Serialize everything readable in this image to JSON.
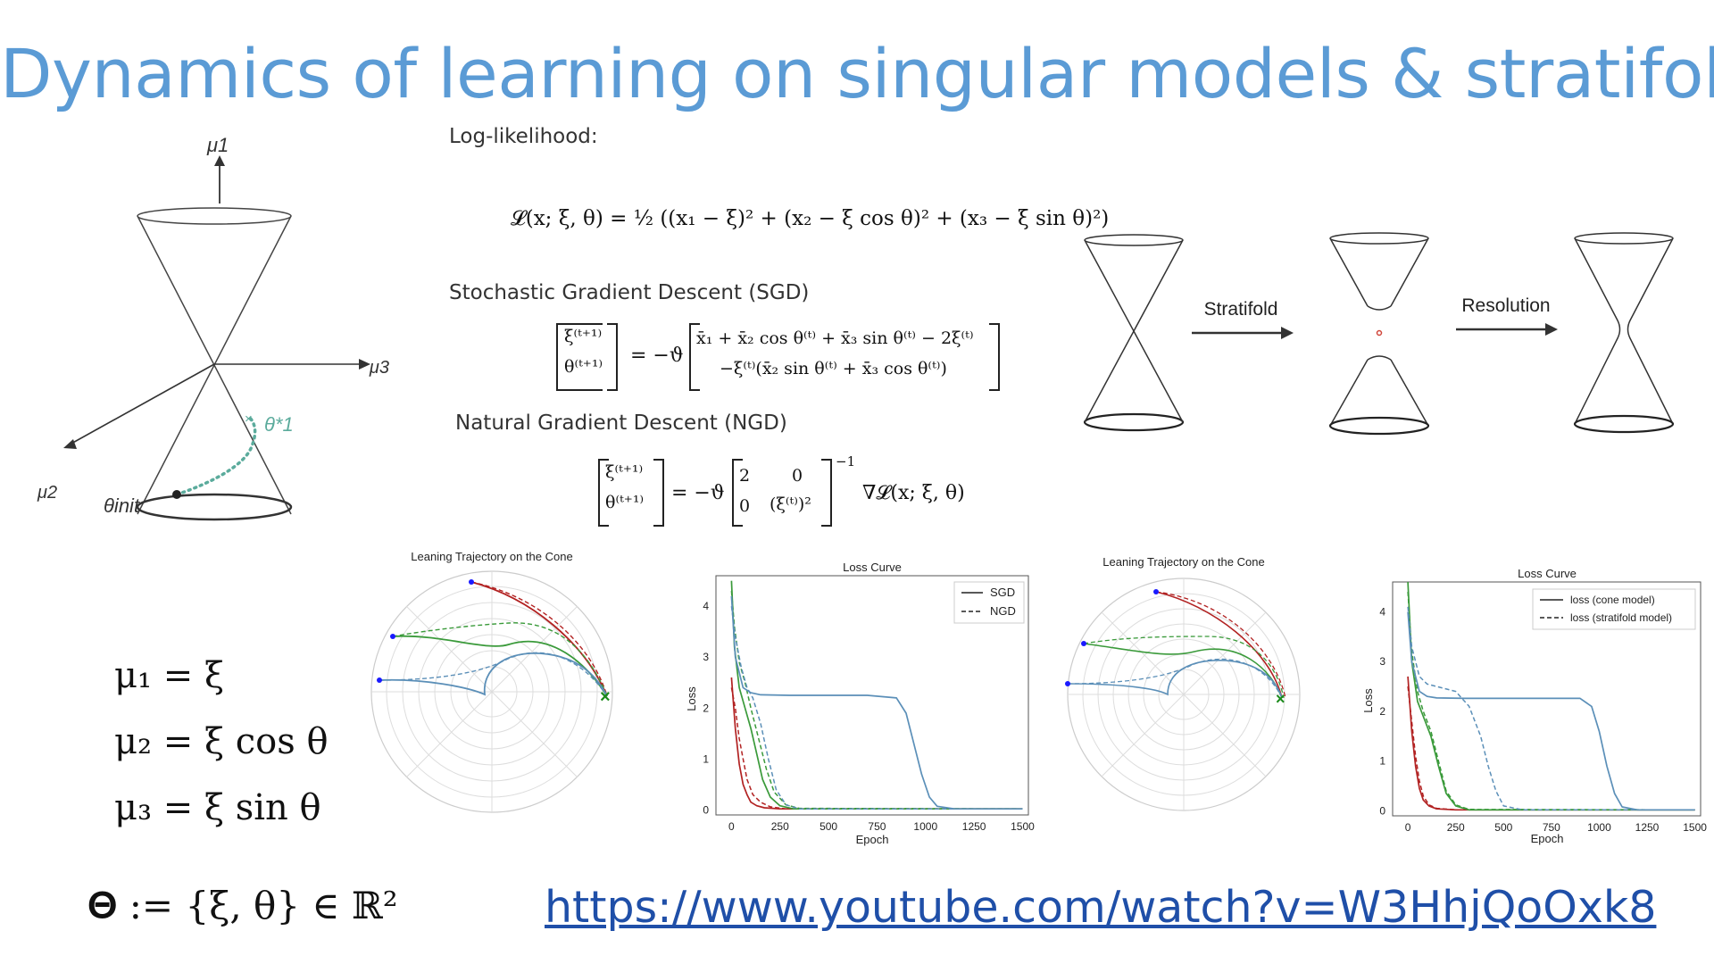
{
  "slide": {
    "title": "Dynamics of learning on singular models & stratifolds",
    "link": "https://www.youtube.com/watch?v=W3HhjQoOxk8"
  },
  "cone_diagram": {
    "axis_mu1": "μ1",
    "axis_mu2": "μ2",
    "axis_mu3": "μ3",
    "theta_star": "θ*1",
    "theta_init": "θinit"
  },
  "equations": {
    "loglik_label": "Log-likelihood:",
    "loglik": "𝓛(x; ξ, θ) = ½ ((x₁ − ξ)² + (x₂ − ξ cos θ)² + (x₃ − ξ sin θ)²)",
    "sgd_label": "Stochastic Gradient Descent (SGD)",
    "sgd_lhs_top": "ξ⁽ᵗ⁺¹⁾",
    "sgd_lhs_bottom": "θ⁽ᵗ⁺¹⁾",
    "sgd_factor": "= −ϑ",
    "sgd_rhs_top": "x̄₁ + x̄₂ cos θ⁽ᵗ⁾ + x̄₃ sin θ⁽ᵗ⁾ − 2ξ⁽ᵗ⁾",
    "sgd_rhs_bottom": "−ξ⁽ᵗ⁾(x̄₂ sin θ⁽ᵗ⁾ + x̄₃ cos θ⁽ᵗ⁾)",
    "ngd_label": "Natural Gradient Descent (NGD)",
    "ngd_lhs_top": "ξ⁽ᵗ⁺¹⁾",
    "ngd_lhs_bottom": "θ⁽ᵗ⁺¹⁾",
    "ngd_factor": "= −ϑ",
    "ngd_m11": "2",
    "ngd_m12": "0",
    "ngd_m21": "0",
    "ngd_m22": "(ξ⁽ᵗ⁾)²",
    "ngd_exp": "−1",
    "ngd_grad": "∇𝓛(x; ξ, θ)"
  },
  "stratifold_diagram": {
    "arrow1_label": "Stratifold",
    "arrow2_label": "Resolution"
  },
  "parametrization": {
    "mu1": "μ₁ = ξ",
    "mu2": "μ₂ = ξ cos θ",
    "mu3": "μ₃ = ξ sin θ",
    "theta_set": "𝚯 := {ξ, θ} ∈ ℝ²"
  },
  "charts": {
    "polar_left_title": "Leaning Trajectory on the Cone",
    "polar_right_title": "Leaning Trajectory on the Cone",
    "loss_left_title": "Loss Curve",
    "loss_right_title": "Loss Curve"
  },
  "chart_data": [
    {
      "type": "line",
      "title": "Loss Curve",
      "xlabel": "Epoch",
      "ylabel": "Loss",
      "xlim": [
        -80,
        1530
      ],
      "ylim": [
        -0.1,
        4.6
      ],
      "xticks": [
        0,
        250,
        500,
        750,
        1000,
        1250,
        1500
      ],
      "yticks": [
        0,
        1,
        2,
        3,
        4
      ],
      "legend": {
        "position": "top-right",
        "entries": [
          {
            "label": "SGD",
            "style": "solid"
          },
          {
            "label": "NGD",
            "style": "dashed"
          }
        ]
      },
      "series": [
        {
          "color": "#b22222",
          "style": "solid",
          "x": [
            0,
            20,
            40,
            60,
            80,
            100,
            130,
            170,
            250,
            1500
          ],
          "y": [
            2.6,
            1.6,
            0.9,
            0.5,
            0.3,
            0.15,
            0.08,
            0.04,
            0.02,
            0.02
          ]
        },
        {
          "color": "#b22222",
          "style": "dashed",
          "x": [
            0,
            20,
            40,
            60,
            80,
            110,
            150,
            200,
            280,
            1500
          ],
          "y": [
            2.4,
            2.0,
            1.4,
            1.0,
            0.6,
            0.3,
            0.15,
            0.06,
            0.02,
            0.02
          ]
        },
        {
          "color": "#3a9a3a",
          "style": "solid",
          "x": [
            0,
            15,
            40,
            70,
            100,
            130,
            160,
            200,
            250,
            320,
            1500
          ],
          "y": [
            4.5,
            3.2,
            2.4,
            2.0,
            1.6,
            1.1,
            0.6,
            0.25,
            0.08,
            0.02,
            0.02
          ]
        },
        {
          "color": "#3a9a3a",
          "style": "dashed",
          "x": [
            0,
            15,
            40,
            70,
            100,
            140,
            180,
            220,
            280,
            350,
            1500
          ],
          "y": [
            4.3,
            3.6,
            2.9,
            2.5,
            2.0,
            1.4,
            0.8,
            0.35,
            0.1,
            0.03,
            0.02
          ]
        },
        {
          "color": "#5b8fb8",
          "style": "solid",
          "x": [
            0,
            20,
            60,
            100,
            150,
            300,
            700,
            850,
            900,
            940,
            980,
            1020,
            1060,
            1150,
            1500
          ],
          "y": [
            4.2,
            3.0,
            2.4,
            2.3,
            2.26,
            2.25,
            2.25,
            2.2,
            1.9,
            1.3,
            0.7,
            0.25,
            0.07,
            0.02,
            0.02
          ]
        },
        {
          "color": "#5b8fb8",
          "style": "dashed",
          "x": [
            0,
            20,
            50,
            80,
            110,
            150,
            190,
            230,
            280,
            350,
            1500
          ],
          "y": [
            4.0,
            3.4,
            2.8,
            2.4,
            2.2,
            1.7,
            1.0,
            0.4,
            0.1,
            0.02,
            0.02
          ]
        }
      ]
    },
    {
      "type": "line",
      "title": "Loss Curve",
      "xlabel": "Epoch",
      "ylabel": "Loss",
      "xlim": [
        -80,
        1530
      ],
      "ylim": [
        -0.1,
        4.6
      ],
      "xticks": [
        0,
        250,
        500,
        750,
        1000,
        1250,
        1500
      ],
      "yticks": [
        0,
        1,
        2,
        3,
        4
      ],
      "legend": {
        "position": "top-right",
        "entries": [
          {
            "label": "loss (cone model)",
            "style": "solid"
          },
          {
            "label": "loss (stratifold model)",
            "style": "dashed"
          }
        ]
      },
      "series": [
        {
          "color": "#b22222",
          "style": "solid",
          "x": [
            0,
            20,
            40,
            60,
            80,
            110,
            150,
            250,
            1500
          ],
          "y": [
            2.7,
            1.6,
            0.9,
            0.45,
            0.22,
            0.1,
            0.04,
            0.02,
            0.02
          ]
        },
        {
          "color": "#b22222",
          "style": "dashed",
          "x": [
            0,
            20,
            40,
            60,
            80,
            110,
            150,
            250,
            1500
          ],
          "y": [
            2.5,
            1.8,
            1.1,
            0.6,
            0.3,
            0.12,
            0.05,
            0.02,
            0.02
          ]
        },
        {
          "color": "#3a9a3a",
          "style": "solid",
          "x": [
            0,
            20,
            50,
            80,
            120,
            160,
            200,
            250,
            320,
            1500
          ],
          "y": [
            4.6,
            3.0,
            2.2,
            1.9,
            1.5,
            0.9,
            0.35,
            0.1,
            0.02,
            0.02
          ]
        },
        {
          "color": "#3a9a3a",
          "style": "dashed",
          "x": [
            0,
            20,
            50,
            80,
            120,
            160,
            200,
            250,
            320,
            1500
          ],
          "y": [
            4.4,
            3.2,
            2.4,
            2.0,
            1.6,
            1.0,
            0.4,
            0.12,
            0.03,
            0.02
          ]
        },
        {
          "color": "#5b8fb8",
          "style": "solid",
          "x": [
            0,
            20,
            60,
            100,
            150,
            300,
            900,
            960,
            1000,
            1040,
            1080,
            1120,
            1200,
            1500
          ],
          "y": [
            4.0,
            3.0,
            2.4,
            2.3,
            2.27,
            2.26,
            2.26,
            2.1,
            1.6,
            0.9,
            0.35,
            0.08,
            0.02,
            0.02
          ]
        },
        {
          "color": "#5b8fb8",
          "style": "dashed",
          "x": [
            0,
            20,
            60,
            100,
            150,
            250,
            320,
            380,
            420,
            460,
            500,
            600,
            1500
          ],
          "y": [
            4.1,
            3.3,
            2.7,
            2.55,
            2.5,
            2.4,
            2.1,
            1.5,
            0.9,
            0.4,
            0.1,
            0.02,
            0.02
          ]
        }
      ]
    }
  ]
}
